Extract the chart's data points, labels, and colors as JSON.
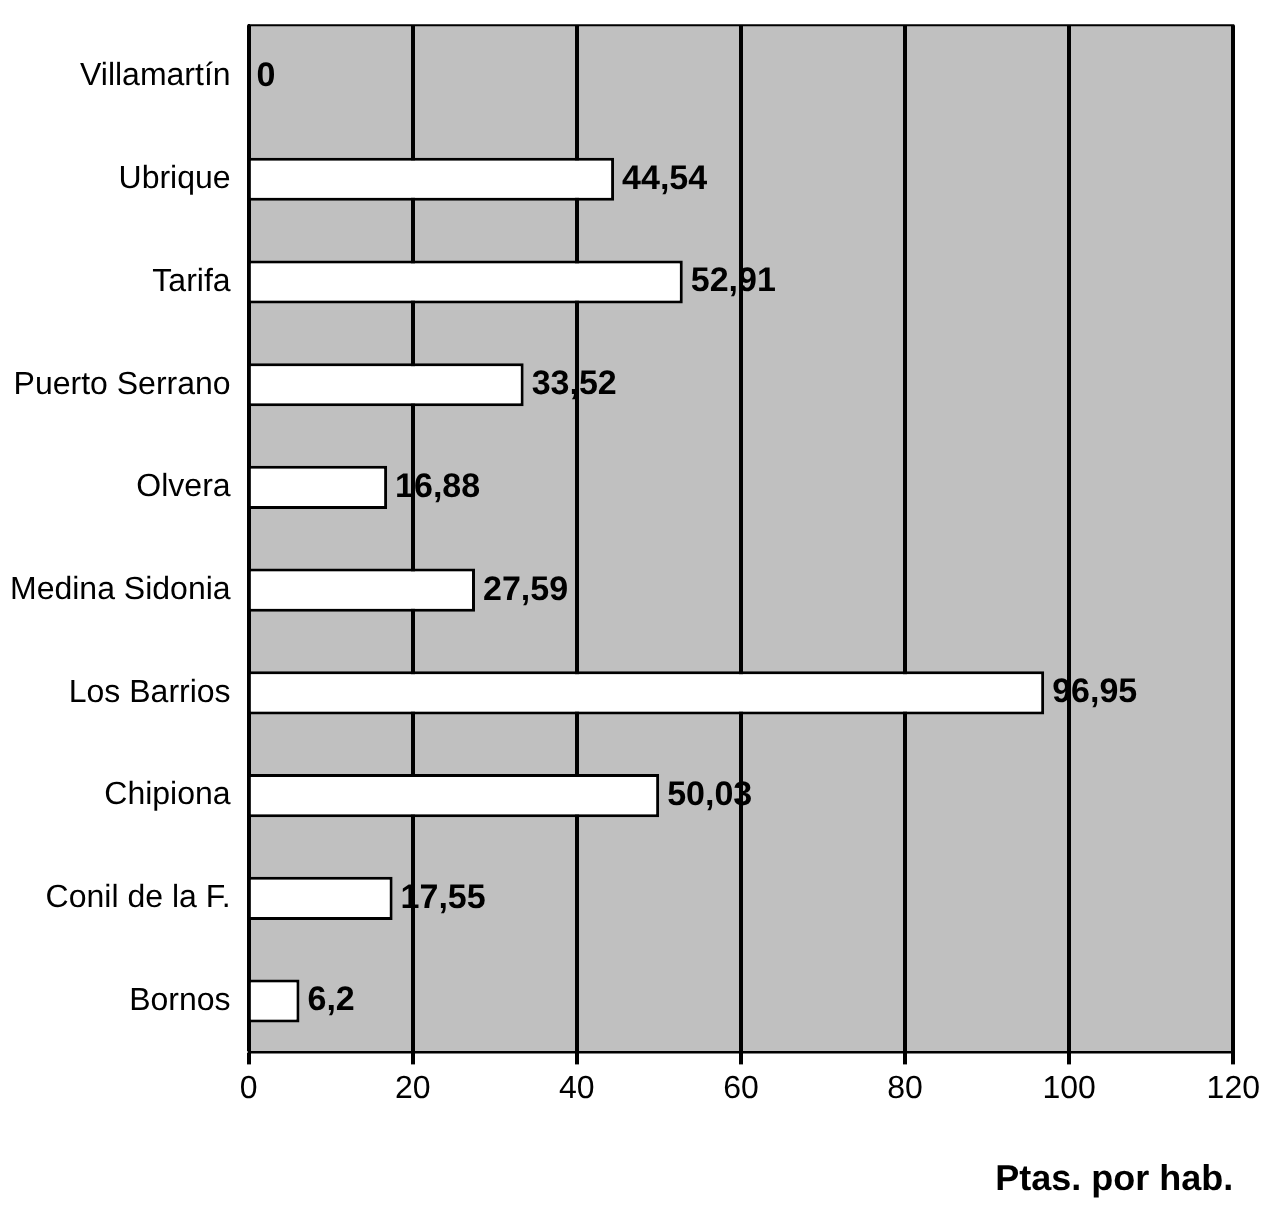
{
  "chart_data": {
    "type": "bar",
    "orientation": "horizontal",
    "xlabel": "Ptas. por hab.",
    "categories": [
      "Villamartín",
      "Ubrique",
      "Tarifa",
      "Puerto Serrano",
      "Olvera",
      "Medina Sidonia",
      "Los Barrios",
      "Chipiona",
      "Conil de la F.",
      "Bornos"
    ],
    "values": [
      0,
      44.54,
      52.91,
      33.52,
      16.88,
      27.59,
      96.95,
      50.03,
      17.55,
      6.2
    ],
    "value_labels": [
      "0",
      "44,54",
      "52,91",
      "33,52",
      "16,88",
      "27,59",
      "96,95",
      "50,03",
      "17,55",
      "6,2"
    ],
    "color": "#ffffff",
    "xlim": [
      0,
      120
    ],
    "xticks": [
      0,
      20,
      40,
      60,
      80,
      100,
      120
    ],
    "grid": "x",
    "legend": false
  }
}
